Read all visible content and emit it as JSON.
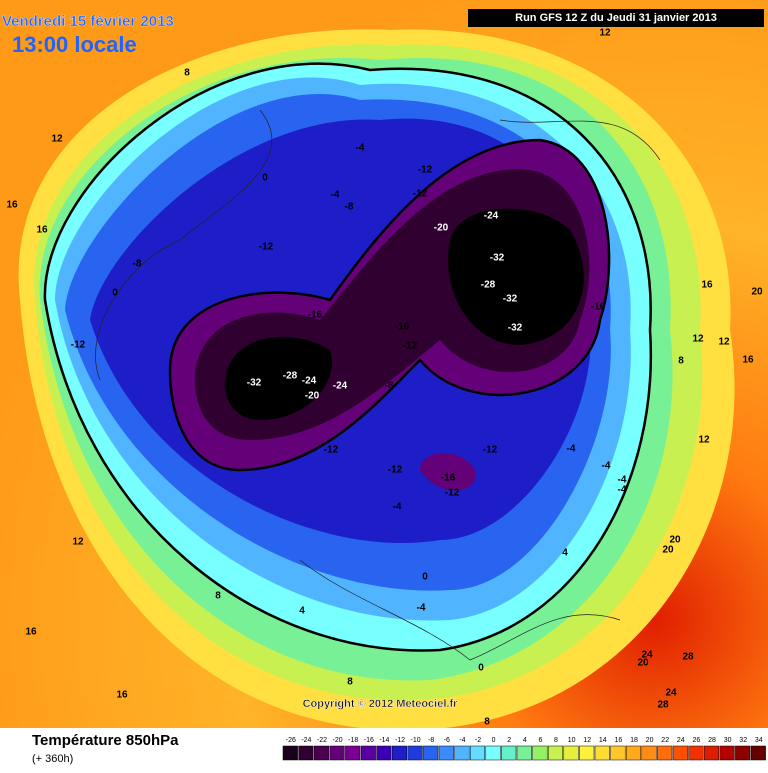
{
  "header": {
    "date": "Vendredi 15 février 2013",
    "time": "13:00 locale",
    "run": "Run GFS 12 Z du Jeudi 31 janvier 2013"
  },
  "copyright": "Copyright © 2012 Meteociel.fr",
  "footer": {
    "title": "Température 850hPa",
    "subtitle": "(+ 360h)"
  },
  "legend": {
    "ticks": [
      -26,
      -24,
      -22,
      -20,
      -18,
      -16,
      -14,
      -12,
      -10,
      -8,
      -6,
      -4,
      -2,
      0,
      2,
      4,
      6,
      8,
      10,
      12,
      14,
      16,
      18,
      20,
      22,
      24,
      26,
      28,
      30,
      32,
      34
    ],
    "colors": [
      "#1a001a",
      "#300030",
      "#4b0050",
      "#640078",
      "#7a0095",
      "#5a00a0",
      "#3c00b4",
      "#1e1ec8",
      "#1e3cdc",
      "#2864f0",
      "#3c8cff",
      "#50b4ff",
      "#64dcff",
      "#78ffff",
      "#64f0c8",
      "#78f096",
      "#96f064",
      "#c8f050",
      "#e6f03c",
      "#fff03c",
      "#ffdc32",
      "#ffc828",
      "#ffaa1e",
      "#ff8c14",
      "#ff6e0a",
      "#ff5000",
      "#f03200",
      "#dc1e00",
      "#b40000",
      "#8c0000",
      "#640000"
    ]
  },
  "map_labels": [
    "12",
    "8",
    "12",
    "16",
    "16",
    "0",
    "-4",
    "-12",
    "-12",
    "-4",
    "-8",
    "-20",
    "-24",
    "-12",
    "-8",
    "0",
    "-32",
    "-28",
    "-32",
    "-32",
    "-16",
    "-16",
    "-16",
    "-12",
    "-12",
    "-32",
    "-28",
    "-24",
    "-24",
    "-20",
    "-8",
    "-12",
    "-12",
    "-4",
    "-12",
    "-16",
    "-12",
    "-4",
    "-4",
    "-4",
    "-4",
    "4",
    "0",
    "-4",
    "12",
    "8",
    "4",
    "16",
    "16",
    "0",
    "8",
    "8",
    "16",
    "20",
    "12",
    "12",
    "16",
    "8",
    "12",
    "20",
    "20",
    "24",
    "28",
    "20",
    "24",
    "28"
  ]
}
